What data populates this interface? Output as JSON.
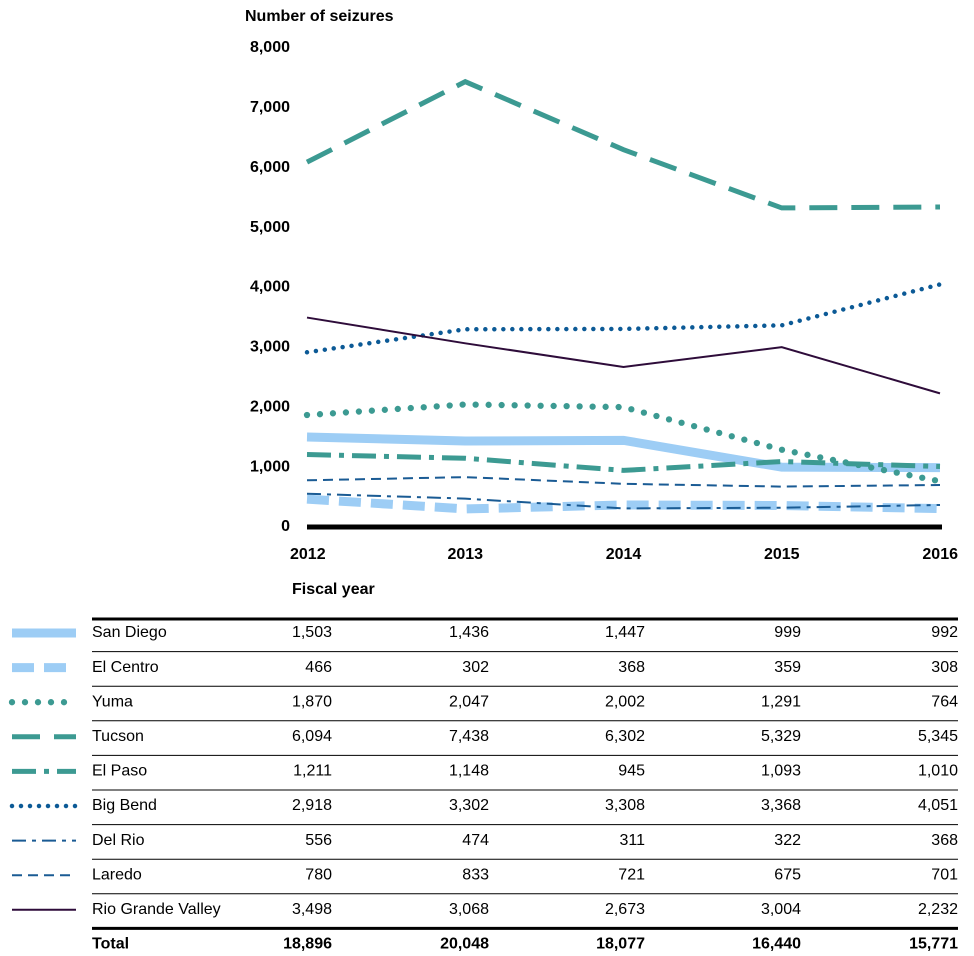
{
  "chart_data": {
    "type": "line",
    "y_label": "Number of seizures",
    "x_label": "Fiscal year",
    "categories": [
      "2012",
      "2013",
      "2014",
      "2015",
      "2016"
    ],
    "ylim": [
      0,
      8000
    ],
    "yticks": [
      0,
      {
        "value": 1000,
        "label": "1,000"
      },
      {
        "value": 2000,
        "label": "2,000"
      },
      {
        "value": 3000,
        "label": "3,000"
      },
      {
        "value": 4000,
        "label": "4,000"
      },
      {
        "value": 5000,
        "label": "5,000"
      },
      {
        "value": 6000,
        "label": "6,000"
      },
      {
        "value": 7000,
        "label": "7,000"
      },
      {
        "value": 8000,
        "label": "8,000"
      }
    ],
    "series": [
      {
        "name": "San Diego",
        "color": "#9dcdf5",
        "style": "solid",
        "weight": "heavy",
        "values": [
          1503,
          1436,
          1447,
          999,
          992
        ],
        "value_labels": [
          "1,503",
          "1,436",
          "1,447",
          "999",
          "992"
        ]
      },
      {
        "name": "El Centro",
        "color": "#9dcdf5",
        "style": "dashed",
        "weight": "heavy",
        "values": [
          466,
          302,
          368,
          359,
          308
        ],
        "value_labels": [
          "466",
          "302",
          "368",
          "359",
          "308"
        ]
      },
      {
        "name": "Yuma",
        "color": "#3c9a92",
        "style": "dotted",
        "weight": "heavy",
        "values": [
          1870,
          2047,
          2002,
          1291,
          764
        ],
        "value_labels": [
          "1,870",
          "2,047",
          "2,002",
          "1,291",
          "764"
        ]
      },
      {
        "name": "Tucson",
        "color": "#3c9a92",
        "style": "dashed",
        "weight": "medium",
        "values": [
          6094,
          7438,
          6302,
          5329,
          5345
        ],
        "value_labels": [
          "6,094",
          "7,438",
          "6,302",
          "5,329",
          "5,345"
        ]
      },
      {
        "name": "El Paso",
        "color": "#3c9a92",
        "style": "dash-dot",
        "weight": "medium",
        "values": [
          1211,
          1148,
          945,
          1093,
          1010
        ],
        "value_labels": [
          "1,211",
          "1,148",
          "945",
          "1,093",
          "1,010"
        ]
      },
      {
        "name": "Big Bend",
        "color": "#0c5a96",
        "style": "dotted",
        "weight": "medium",
        "values": [
          2918,
          3302,
          3308,
          3368,
          4051
        ],
        "value_labels": [
          "2,918",
          "3,302",
          "3,308",
          "3,368",
          "4,051"
        ]
      },
      {
        "name": "Del Rio",
        "color": "#1a5b94",
        "style": "dash-dot",
        "weight": "thin",
        "values": [
          556,
          474,
          311,
          322,
          368
        ],
        "value_labels": [
          "556",
          "474",
          "311",
          "322",
          "368"
        ]
      },
      {
        "name": "Laredo",
        "color": "#1a5b94",
        "style": "dashed",
        "weight": "thin",
        "values": [
          780,
          833,
          721,
          675,
          701
        ],
        "value_labels": [
          "780",
          "833",
          "721",
          "675",
          "701"
        ]
      },
      {
        "name": "Rio Grande Valley",
        "color": "#2e0c3a",
        "style": "solid",
        "weight": "thin",
        "values": [
          3498,
          3068,
          2673,
          3004,
          2232
        ],
        "value_labels": [
          "3,498",
          "3,068",
          "2,673",
          "3,004",
          "2,232"
        ]
      }
    ],
    "total_label": "Total",
    "totals": [
      18896,
      20048,
      18077,
      16440,
      15771
    ],
    "total_labels": [
      "18,896",
      "20,048",
      "18,077",
      "16,440",
      "15,771"
    ]
  }
}
